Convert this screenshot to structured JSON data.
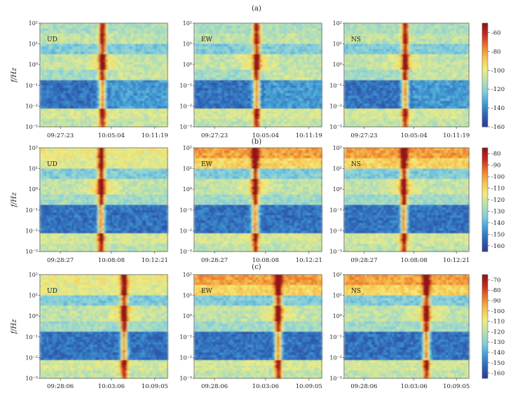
{
  "figure": {
    "colorscale": [
      "#2b3a93",
      "#2f63b5",
      "#3f9bd4",
      "#7fcde0",
      "#b7e0b2",
      "#f1ec7d",
      "#f8c24c",
      "#ec7a2f",
      "#c62a1f",
      "#8b1218"
    ]
  },
  "chart_data": [
    {
      "type": "heatmap",
      "group": "(a)",
      "ylabel": "f/Hz",
      "y_scale": "log",
      "ylim": [
        0.001,
        100
      ],
      "y_ticks": [
        "10²",
        "10¹",
        "10⁰",
        "10⁻¹",
        "10⁻²",
        "10⁻³"
      ],
      "x_ticks": [
        "09:27:23",
        "10:05:04",
        "10:11:19"
      ],
      "components": [
        "UD",
        "EW",
        "NS"
      ],
      "colorbar": {
        "ticks": [
          -60,
          -80,
          -100,
          -120,
          -140,
          -160
        ],
        "range": [
          -160,
          -50
        ]
      }
    },
    {
      "type": "heatmap",
      "group": "(b)",
      "ylabel": "f/Hz",
      "y_scale": "log",
      "ylim": [
        0.001,
        100
      ],
      "y_ticks": [
        "10²",
        "10¹",
        "10⁰",
        "10⁻¹",
        "10⁻²",
        "10⁻³"
      ],
      "x_ticks": [
        "09:28:27",
        "10:08:08",
        "10:12:21"
      ],
      "components": [
        "UD",
        "EW",
        "NS"
      ],
      "colorbar": {
        "ticks": [
          -80,
          -90,
          -100,
          -110,
          -120,
          -130,
          -140,
          -150,
          -160
        ],
        "range": [
          -165,
          -75
        ]
      }
    },
    {
      "type": "heatmap",
      "group": "(c)",
      "ylabel": "f/Hz",
      "y_scale": "log",
      "ylim": [
        0.001,
        100
      ],
      "y_ticks": [
        "10²",
        "10¹",
        "10⁰",
        "10⁻¹",
        "10⁻²",
        "10⁻³"
      ],
      "x_ticks": [
        "09:28:06",
        "10:03:06",
        "10:09:05"
      ],
      "components": [
        "UD",
        "EW",
        "NS"
      ],
      "colorbar": {
        "ticks": [
          -70,
          -80,
          -90,
          -100,
          -110,
          -120,
          -130,
          -140,
          -150,
          -160
        ],
        "range": [
          -165,
          -65
        ]
      }
    }
  ]
}
